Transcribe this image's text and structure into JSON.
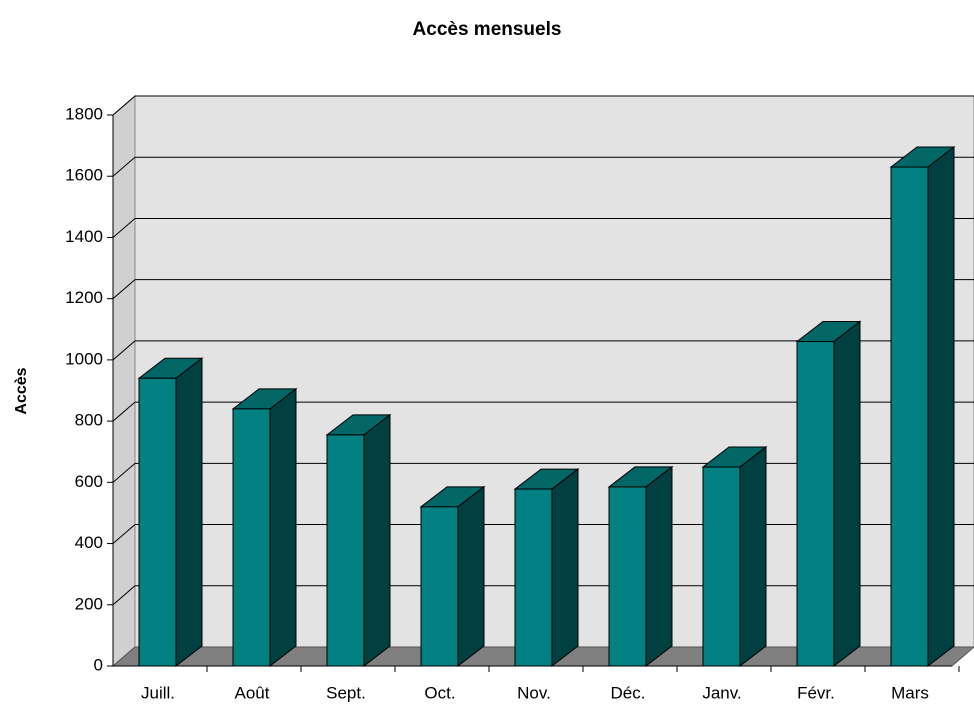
{
  "chart_data": {
    "type": "bar",
    "title": "Accès mensuels",
    "y_label": "Accès",
    "categories": [
      "Juill.",
      "Août",
      "Sept.",
      "Oct.",
      "Nov.",
      "Déc.",
      "Janv.",
      "Févr.",
      "Mars"
    ],
    "values": [
      940,
      840,
      755,
      520,
      578,
      585,
      650,
      1060,
      1630
    ],
    "color": "#008080",
    "ylim": [
      0,
      1800
    ],
    "yticks": [
      0,
      200,
      400,
      600,
      800,
      1000,
      1200,
      1400,
      1600,
      1800
    ],
    "grid": true
  }
}
